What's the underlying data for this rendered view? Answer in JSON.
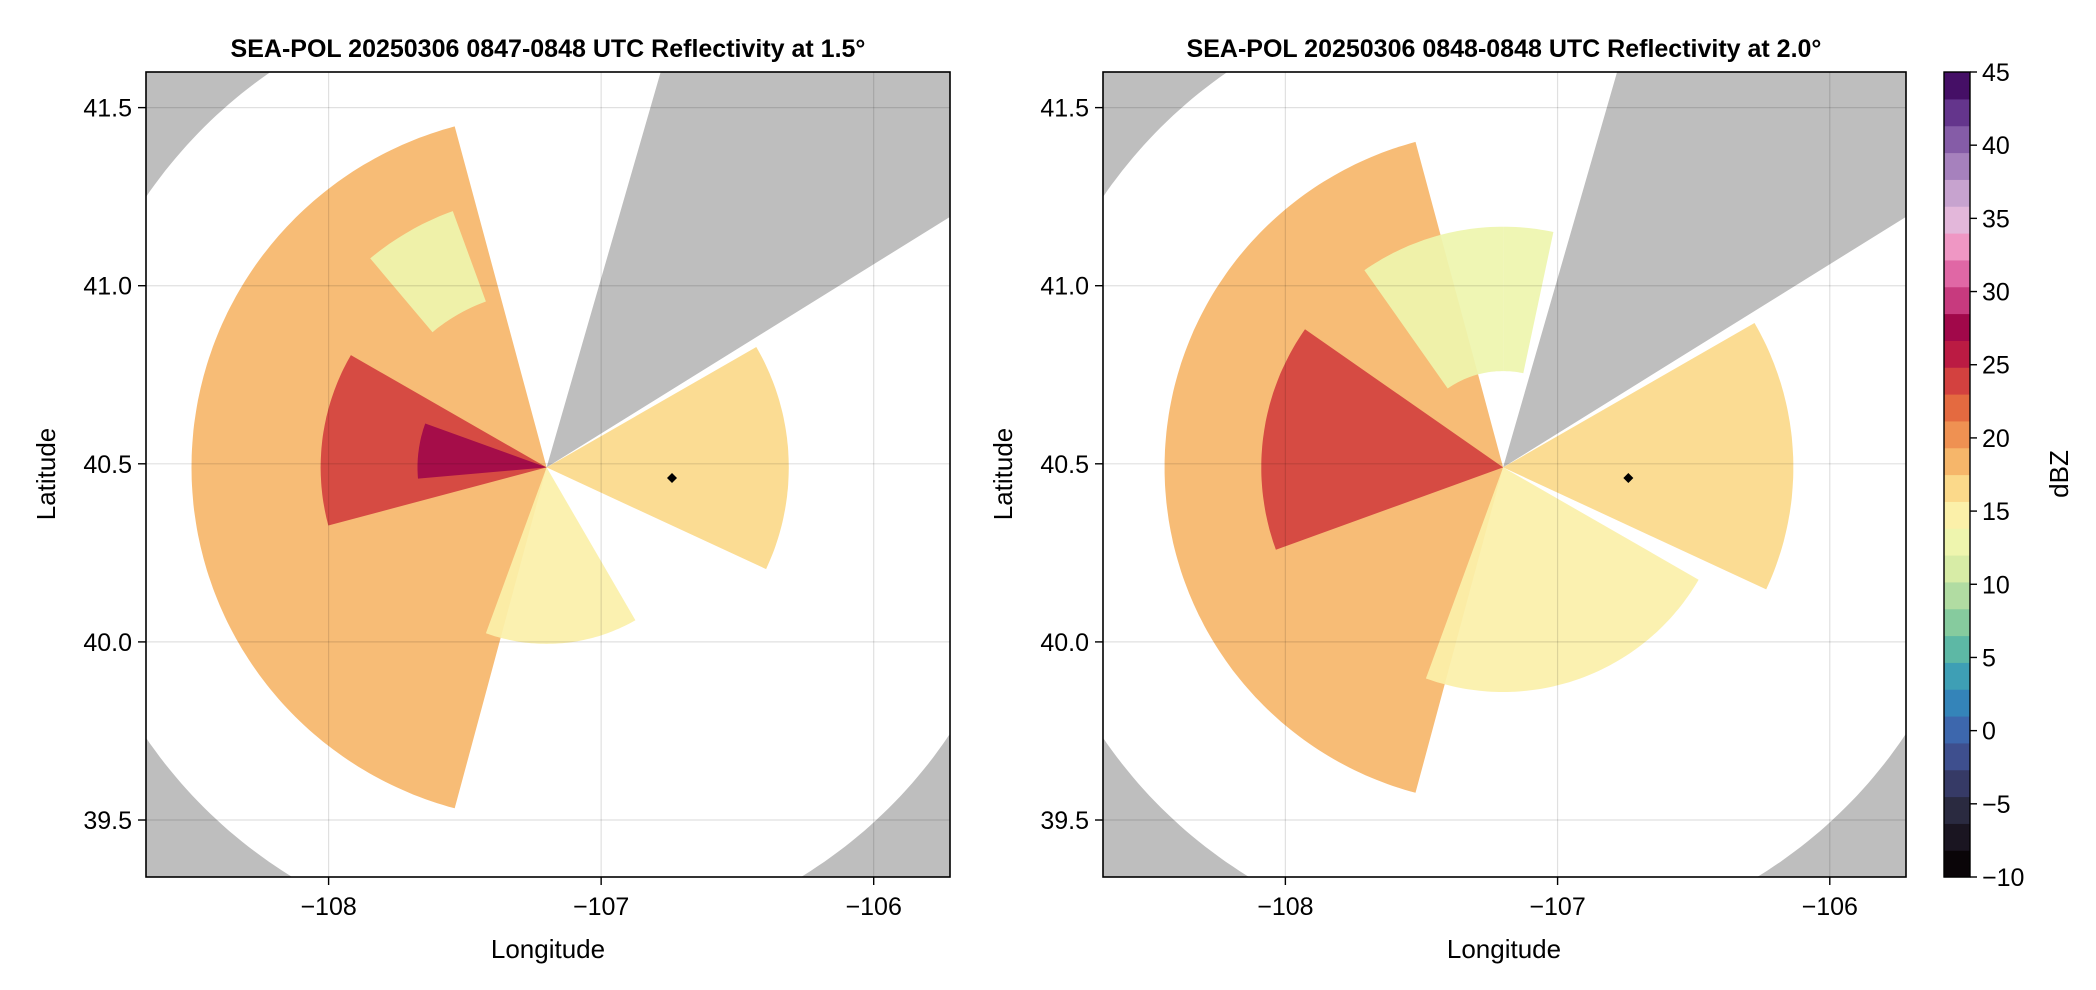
{
  "chart_data": [
    {
      "type": "heatmap",
      "title": "SEA-POL 20250306 0847-0848 UTC Reflectivity at 1.5°",
      "xlabel": "Longitude",
      "ylabel": "Latitude",
      "xlim": [
        -108.67,
        -105.72
      ],
      "ylim": [
        39.34,
        41.6
      ],
      "xticks": [
        -108,
        -107,
        -106
      ],
      "xtick_labels": [
        "−108",
        "−107",
        "−106"
      ],
      "yticks": [
        39.5,
        40.0,
        40.5,
        41.0,
        41.5
      ],
      "ytick_labels": [
        "39.5",
        "40.0",
        "40.5",
        "41.0",
        "41.5"
      ],
      "grid": true,
      "radar": {
        "lon": -107.2,
        "lat": 40.49,
        "range_km": 150,
        "blocked_sector_deg": [
          16,
          58
        ]
      },
      "marker": {
        "lon": -106.74,
        "lat": 40.46
      },
      "echoes": [
        {
          "az_deg": [
            195,
            345
          ],
          "range_km": [
            0,
            110
          ],
          "dbz": 18
        },
        {
          "az_deg": [
            255,
            300
          ],
          "range_km": [
            0,
            70
          ],
          "dbz": 24
        },
        {
          "az_deg": [
            265,
            290
          ],
          "range_km": [
            0,
            40
          ],
          "dbz": 28
        },
        {
          "az_deg": [
            320,
            340
          ],
          "range_km": [
            55,
            85
          ],
          "dbz": 12
        },
        {
          "az_deg": [
            150,
            200
          ],
          "range_km": [
            0,
            55
          ],
          "dbz": 14
        },
        {
          "az_deg": [
            60,
            115
          ],
          "range_km": [
            0,
            75
          ],
          "dbz": 16
        }
      ]
    },
    {
      "type": "heatmap",
      "title": "SEA-POL 20250306 0848-0848 UTC Reflectivity at 2.0°",
      "xlabel": "Longitude",
      "ylabel": "Latitude",
      "xlim": [
        -108.67,
        -105.72
      ],
      "ylim": [
        39.34,
        41.6
      ],
      "xticks": [
        -108,
        -107,
        -106
      ],
      "xtick_labels": [
        "−108",
        "−107",
        "−106"
      ],
      "yticks": [
        39.5,
        40.0,
        40.5,
        41.0,
        41.5
      ],
      "ytick_labels": [
        "39.5",
        "40.0",
        "40.5",
        "41.0",
        "41.5"
      ],
      "grid": true,
      "radar": {
        "lon": -107.2,
        "lat": 40.49,
        "range_km": 150,
        "blocked_sector_deg": [
          16,
          58
        ]
      },
      "marker": {
        "lon": -106.74,
        "lat": 40.46
      },
      "echoes": [
        {
          "az_deg": [
            195,
            345
          ],
          "range_km": [
            0,
            105
          ],
          "dbz": 18
        },
        {
          "az_deg": [
            250,
            305
          ],
          "range_km": [
            0,
            75
          ],
          "dbz": 23
        },
        {
          "az_deg": [
            325,
            360
          ],
          "range_km": [
            30,
            75
          ],
          "dbz": 13
        },
        {
          "az_deg": [
            0,
            12
          ],
          "range_km": [
            30,
            75
          ],
          "dbz": 12
        },
        {
          "az_deg": [
            120,
            200
          ],
          "range_km": [
            0,
            70
          ],
          "dbz": 15
        },
        {
          "az_deg": [
            60,
            115
          ],
          "range_km": [
            0,
            90
          ],
          "dbz": 17
        }
      ]
    }
  ],
  "colorbar": {
    "label": "dBZ",
    "min": -10,
    "max": 45,
    "ticks": [
      -10,
      -5,
      0,
      5,
      10,
      15,
      20,
      25,
      30,
      35,
      40,
      45
    ],
    "tick_labels": [
      "−10",
      "−5",
      "0",
      "5",
      "10",
      "15",
      "20",
      "25",
      "30",
      "35",
      "40",
      "45"
    ],
    "colors": [
      "#0a0508",
      "#1a1521",
      "#2a2a40",
      "#363a66",
      "#3e4f8e",
      "#3d67ad",
      "#3484b9",
      "#3e9fb5",
      "#5db8a5",
      "#86cb9e",
      "#b1dca2",
      "#d7eca6",
      "#eef5ae",
      "#fbf0a9",
      "#fbd98a",
      "#f6b66a",
      "#ef9152",
      "#e46a40",
      "#d3413f",
      "#bb1b43",
      "#a1084a",
      "#c73a7e",
      "#e067a5",
      "#ef97c4",
      "#e3b7da",
      "#c7a3cf",
      "#a681bd",
      "#855ca7",
      "#64358c",
      "#450f66"
    ]
  },
  "colors": {
    "background_mask": "#bebebe",
    "inside_range": "#ffffff",
    "marker": "#000000"
  }
}
